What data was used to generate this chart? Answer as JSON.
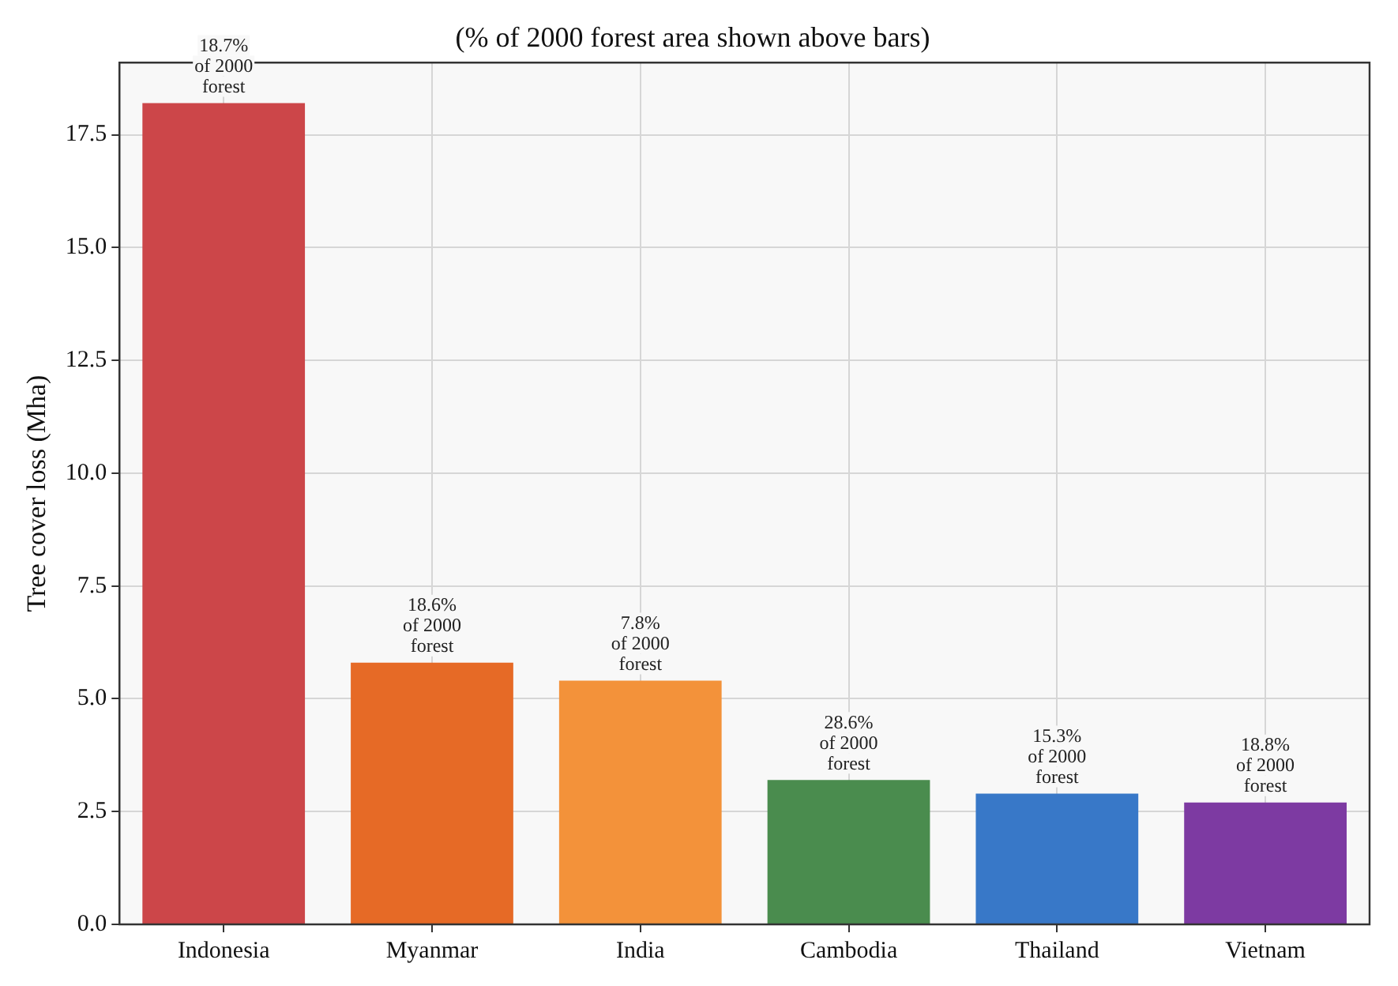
{
  "chart_data": {
    "type": "bar",
    "title": "(% of 2000 forest area shown above bars)",
    "ylabel": "Tree cover loss (Mha)",
    "categories": [
      "Indonesia",
      "Myanmar",
      "India",
      "Cambodia",
      "Thailand",
      "Vietnam"
    ],
    "values": [
      18.2,
      5.8,
      5.4,
      3.2,
      2.9,
      2.7
    ],
    "colors": [
      "#cc4649",
      "#e66a26",
      "#f3923a",
      "#4a8c4e",
      "#3878c8",
      "#7d3aa2"
    ],
    "annotations": [
      {
        "text": "18.7%\nof 2000\nforest",
        "x": "Indonesia",
        "y": 18.2
      },
      {
        "text": "18.6%\nof 2000\nforest",
        "x": "Myanmar",
        "y": 5.8
      },
      {
        "text": "7.8%\nof 2000\nforest",
        "x": "India",
        "y": 5.4
      },
      {
        "text": "28.6%\nof 2000\nforest",
        "x": "Cambodia",
        "y": 3.2
      },
      {
        "text": "15.3%\nof 2000\nforest",
        "x": "Thailand",
        "y": 2.9
      },
      {
        "text": "18.8%\nof 2000\nforest",
        "x": "Vietnam",
        "y": 2.7
      }
    ],
    "ylim": [
      0,
      19.1
    ],
    "yticks": [
      {
        "value": 0,
        "label": "0.0"
      },
      {
        "value": 2.5,
        "label": "2.5"
      },
      {
        "value": 5,
        "label": "5.0"
      },
      {
        "value": 7.5,
        "label": "7.5"
      },
      {
        "value": 10,
        "label": "10.0"
      },
      {
        "value": 12.5,
        "label": "12.5"
      },
      {
        "value": 15,
        "label": "15.0"
      },
      {
        "value": 17.5,
        "label": "17.5"
      }
    ],
    "grid": true,
    "legend": false
  }
}
